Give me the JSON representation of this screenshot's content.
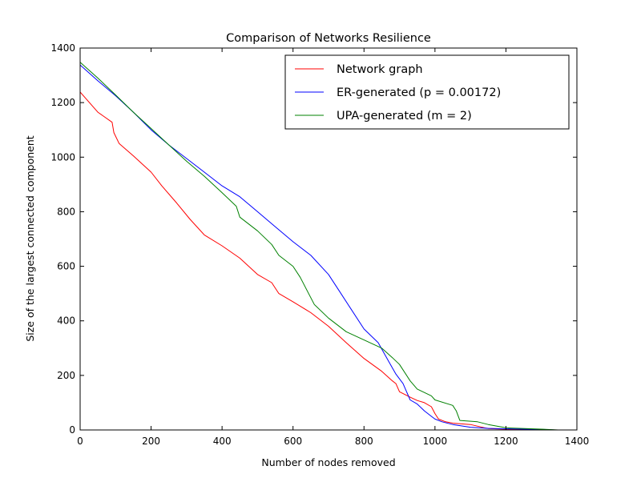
{
  "chart_data": {
    "type": "line",
    "title": "Comparison of Networks Resilience",
    "xlabel": "Number of nodes removed",
    "ylabel": "Size of the largest connected component",
    "xlim": [
      0,
      1400
    ],
    "ylim": [
      0,
      1400
    ],
    "xticks": [
      0,
      200,
      400,
      600,
      800,
      1000,
      1200,
      1400
    ],
    "yticks": [
      0,
      200,
      400,
      600,
      800,
      1000,
      1200,
      1400
    ],
    "grid": false,
    "legend": "top-right",
    "series": [
      {
        "name": "Network graph",
        "color": "#ff0000",
        "x": [
          0,
          50,
          90,
          95,
          110,
          150,
          200,
          230,
          270,
          310,
          350,
          400,
          450,
          500,
          540,
          560,
          600,
          650,
          700,
          750,
          800,
          850,
          880,
          890,
          900,
          930,
          950,
          970,
          990,
          1000,
          1010,
          1030,
          1050,
          1100,
          1140,
          1150,
          1200,
          1300,
          1347
        ],
        "y": [
          1239,
          1165,
          1128,
          1090,
          1050,
          1005,
          945,
          895,
          835,
          772,
          715,
          675,
          630,
          570,
          540,
          500,
          470,
          430,
          380,
          320,
          262,
          215,
          180,
          170,
          140,
          120,
          108,
          100,
          85,
          60,
          40,
          30,
          25,
          20,
          8,
          5,
          3,
          1,
          0
        ]
      },
      {
        "name": "ER-generated (p = 0.00172)",
        "color": "#0000ff",
        "x": [
          0,
          50,
          100,
          150,
          200,
          250,
          300,
          350,
          400,
          450,
          500,
          550,
          600,
          650,
          700,
          730,
          760,
          800,
          840,
          870,
          890,
          910,
          930,
          950,
          970,
          990,
          1000,
          1020,
          1050,
          1100,
          1150,
          1200,
          1300,
          1338
        ],
        "y": [
          1338,
          1280,
          1225,
          1165,
          1100,
          1045,
          995,
          945,
          895,
          855,
          800,
          745,
          690,
          640,
          570,
          510,
          450,
          370,
          320,
          250,
          205,
          170,
          110,
          95,
          70,
          50,
          40,
          30,
          20,
          10,
          6,
          4,
          2,
          0
        ]
      },
      {
        "name": "UPA-generated (m = 2)",
        "color": "#008000",
        "x": [
          0,
          50,
          100,
          150,
          200,
          250,
          300,
          350,
          400,
          440,
          450,
          500,
          540,
          560,
          600,
          620,
          660,
          700,
          750,
          800,
          850,
          880,
          900,
          930,
          950,
          990,
          1000,
          1050,
          1060,
          1070,
          1120,
          1150,
          1200,
          1300,
          1347
        ],
        "y": [
          1348,
          1290,
          1228,
          1165,
          1105,
          1045,
          985,
          930,
          870,
          820,
          780,
          730,
          680,
          640,
          600,
          560,
          460,
          410,
          360,
          330,
          300,
          265,
          240,
          180,
          150,
          125,
          110,
          90,
          70,
          35,
          30,
          20,
          8,
          3,
          0
        ]
      }
    ]
  }
}
